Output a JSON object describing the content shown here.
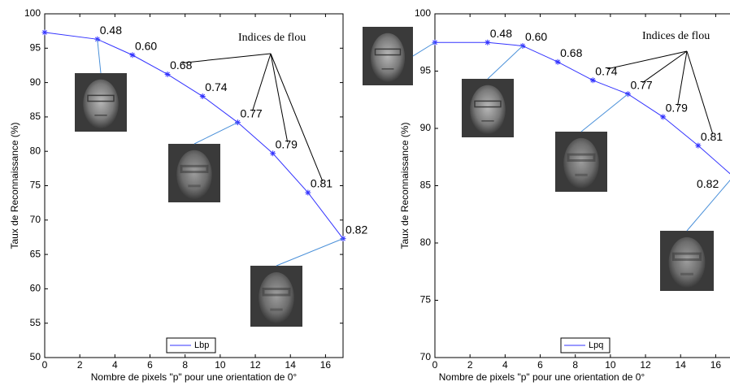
{
  "chart_data": [
    {
      "type": "line",
      "xlabel": "Nombre de pixels \"p\" pour une orientation de 0°",
      "ylabel": "Taux de Reconnaissance (%)",
      "x": [
        0,
        3,
        5,
        7,
        9,
        11,
        13,
        15,
        17
      ],
      "series": [
        {
          "name": "Lbp",
          "color": "#3333ff",
          "values": [
            97.3,
            96.3,
            94.0,
            91.2,
            88.0,
            84.2,
            79.7,
            74.0,
            67.3
          ]
        }
      ],
      "blur_indices": [
        "0.48",
        "0.60",
        "0.68",
        "0.74",
        "0.77",
        "0.79",
        "0.81",
        "0.82"
      ],
      "annotation": "Indices de flou",
      "xlim": [
        0,
        17
      ],
      "xticks": [
        0,
        2,
        4,
        6,
        8,
        10,
        12,
        14,
        16
      ],
      "ylim": [
        50,
        100
      ],
      "yticks": [
        50,
        55,
        60,
        65,
        70,
        75,
        80,
        85,
        90,
        95,
        100
      ],
      "legend": "lower center"
    },
    {
      "type": "line",
      "xlabel": "Nombre de pixels \"p\" pour une orientation de 0°",
      "ylabel": "Taux de Reconnaissance (%)",
      "x": [
        0,
        3,
        5,
        7,
        9,
        11,
        13,
        15,
        17
      ],
      "series": [
        {
          "name": "Lpq",
          "color": "#3333ff",
          "values": [
            97.5,
            97.5,
            97.2,
            95.8,
            94.2,
            93.0,
            91.0,
            88.5,
            85.8
          ]
        }
      ],
      "blur_indices": [
        "0.48",
        "0.60",
        "0.68",
        "0.74",
        "0.77",
        "0.79",
        "0.81",
        "0.82"
      ],
      "annotation": "Indices de flou",
      "xlim": [
        0,
        17
      ],
      "xticks": [
        0,
        2,
        4,
        6,
        8,
        10,
        12,
        14,
        16
      ],
      "ylim": [
        70,
        100
      ],
      "yticks": [
        70,
        75,
        80,
        85,
        90,
        95,
        100
      ],
      "legend": "lower center"
    }
  ]
}
